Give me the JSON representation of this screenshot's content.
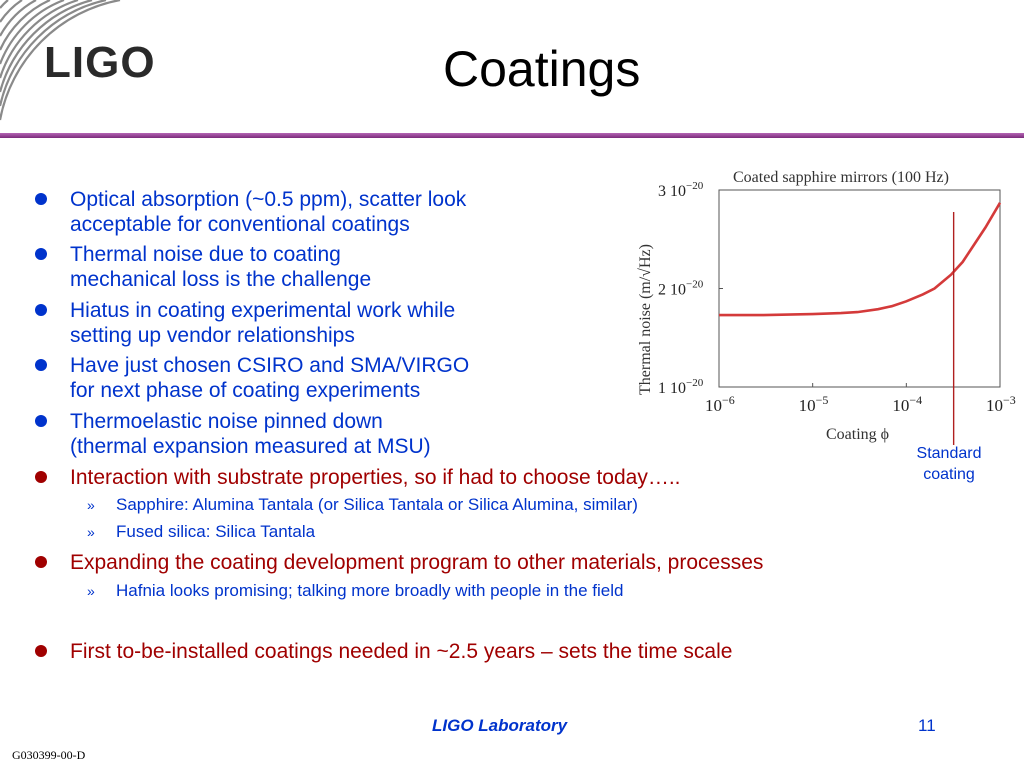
{
  "header": {
    "logo_text": "LIGO",
    "title": "Coatings"
  },
  "bullets": [
    {
      "line1": "Optical absorption (~0.5 ppm), scatter look",
      "line2": "acceptable for conventional coatings"
    },
    {
      "line1": "Thermal noise due to coating",
      "line2": "mechanical loss is the challenge"
    },
    {
      "line1": "Hiatus in coating experimental work while",
      "line2": "setting up vendor relationships"
    },
    {
      "line1": "Have just chosen CSIRO and SMA/VIRGO",
      "line2": "for next phase of coating experiments"
    },
    {
      "line1": "Thermoelastic noise pinned down",
      "line2": "(thermal expansion measured at MSU)"
    },
    {
      "line1": "Interaction with substrate properties, so if had to choose today…..",
      "subs": [
        "Sapphire: Alumina Tantala (or Silica Tantala or Silica Alumina, similar)",
        "Fused silica: Silica Tantala"
      ]
    },
    {
      "line1": "Expanding the coating development program to other materials, processes",
      "subs": [
        "Hafnia looks promising; talking more broadly with people in the field"
      ]
    },
    {
      "line1": "First to-be-installed coatings needed in ~2.5 years – sets the time scale"
    }
  ],
  "sub_marker": "»",
  "annotation": {
    "line1": "Standard",
    "line2": "coating"
  },
  "footer": {
    "lab": "LIGO Laboratory",
    "page": "11",
    "doc_id": "G030399-00-D"
  },
  "colors": {
    "blue_text": "#0033cc",
    "red_text": "#a00000",
    "rule": "#9c4a9c",
    "curve": "#d43a3a",
    "marker_line": "#b02020"
  },
  "chart_data": {
    "type": "line",
    "title": "Coated sapphire mirrors (100 Hz)",
    "xlabel": "Coating ϕ",
    "ylabel": "Thermal noise (m/√Hz)",
    "x_scale": "log",
    "xlim": [
      1e-06,
      0.001
    ],
    "ylim": [
      1e-20,
      3e-20
    ],
    "x_ticks": [
      {
        "value": 1e-06,
        "base": "10",
        "exp": "−6"
      },
      {
        "value": 1e-05,
        "base": "10",
        "exp": "−5"
      },
      {
        "value": 0.0001,
        "base": "10",
        "exp": "−4"
      },
      {
        "value": 0.001,
        "base": "10",
        "exp": "−3"
      }
    ],
    "y_ticks": [
      {
        "value": 1e-20,
        "mant": "1 10",
        "exp": "−20"
      },
      {
        "value": 2e-20,
        "mant": "2 10",
        "exp": "−20"
      },
      {
        "value": 3e-20,
        "mant": "3 10",
        "exp": "−20"
      }
    ],
    "series": [
      {
        "x": [
          1e-06,
          3e-06,
          1e-05,
          2e-05,
          3e-05,
          5e-05,
          7e-05,
          0.0001,
          0.00015,
          0.0002,
          0.0003,
          0.0004,
          0.0005,
          0.0007,
          0.001
        ],
        "y": [
          1.73e-20,
          1.73e-20,
          1.74e-20,
          1.75e-20,
          1.76e-20,
          1.79e-20,
          1.82e-20,
          1.87e-20,
          1.94e-20,
          2e-20,
          2.14e-20,
          2.27e-20,
          2.41e-20,
          2.62e-20,
          2.87e-20
        ]
      }
    ],
    "marker_x": 0.00032
  }
}
